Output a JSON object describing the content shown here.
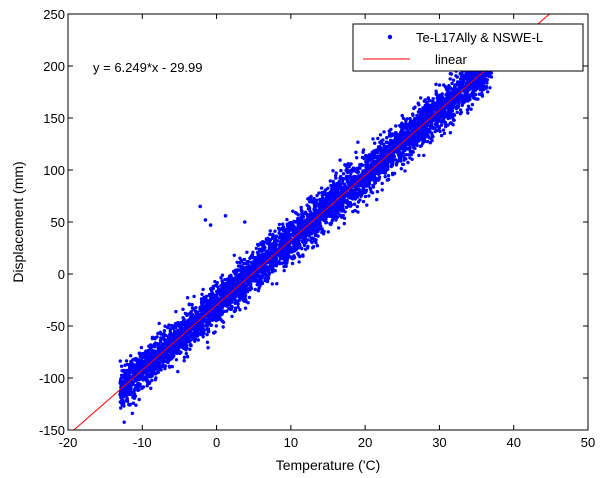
{
  "chart_data": {
    "type": "scatter",
    "xlabel": "Temperature ('C)",
    "ylabel": "Displacement (mm)",
    "xlim": [
      -20,
      50
    ],
    "ylim": [
      -150,
      250
    ],
    "xticks": [
      -20,
      -10,
      0,
      10,
      20,
      30,
      40,
      50
    ],
    "yticks": [
      -150,
      -100,
      -50,
      0,
      50,
      100,
      150,
      200,
      250
    ],
    "xtick_labels": [
      "-20",
      "-10",
      "0",
      "10",
      "20",
      "30",
      "40",
      "50"
    ],
    "ytick_labels": [
      "-150",
      "-100",
      "-50",
      "0",
      "50",
      "100",
      "150",
      "200",
      "250"
    ],
    "grid": false,
    "legend_position": "top-right",
    "annotation": "y = 6.249*x - 29.99",
    "series": [
      {
        "name": "Te-L17Ally & NSWE-L",
        "kind": "scatter",
        "color": "#0000ff",
        "marker": "dot",
        "x_range": [
          -13,
          37
        ],
        "slope": 6.249,
        "intercept": -29.99,
        "spread": 10,
        "sample_points": [
          [
            -12.5,
            -118
          ],
          [
            -12,
            -108
          ],
          [
            -10,
            -92
          ],
          [
            -8,
            -80
          ],
          [
            -5,
            -60
          ],
          [
            -3,
            -48
          ],
          [
            0,
            -30
          ],
          [
            2,
            -18
          ],
          [
            5,
            2
          ],
          [
            8,
            20
          ],
          [
            10,
            32
          ],
          [
            13,
            52
          ],
          [
            15,
            64
          ],
          [
            18,
            83
          ],
          [
            20,
            95
          ],
          [
            23,
            114
          ],
          [
            25,
            126
          ],
          [
            28,
            145
          ],
          [
            30,
            157
          ],
          [
            33,
            176
          ],
          [
            35,
            189
          ],
          [
            36,
            195
          ]
        ],
        "outliers": [
          [
            -2.2,
            65
          ],
          [
            -0.8,
            47
          ],
          [
            3.8,
            50
          ],
          [
            -1.5,
            52
          ],
          [
            1.2,
            56
          ]
        ]
      },
      {
        "name": "linear",
        "kind": "line",
        "color": "#ff0000",
        "slope": 6.249,
        "intercept": -29.99
      }
    ]
  }
}
